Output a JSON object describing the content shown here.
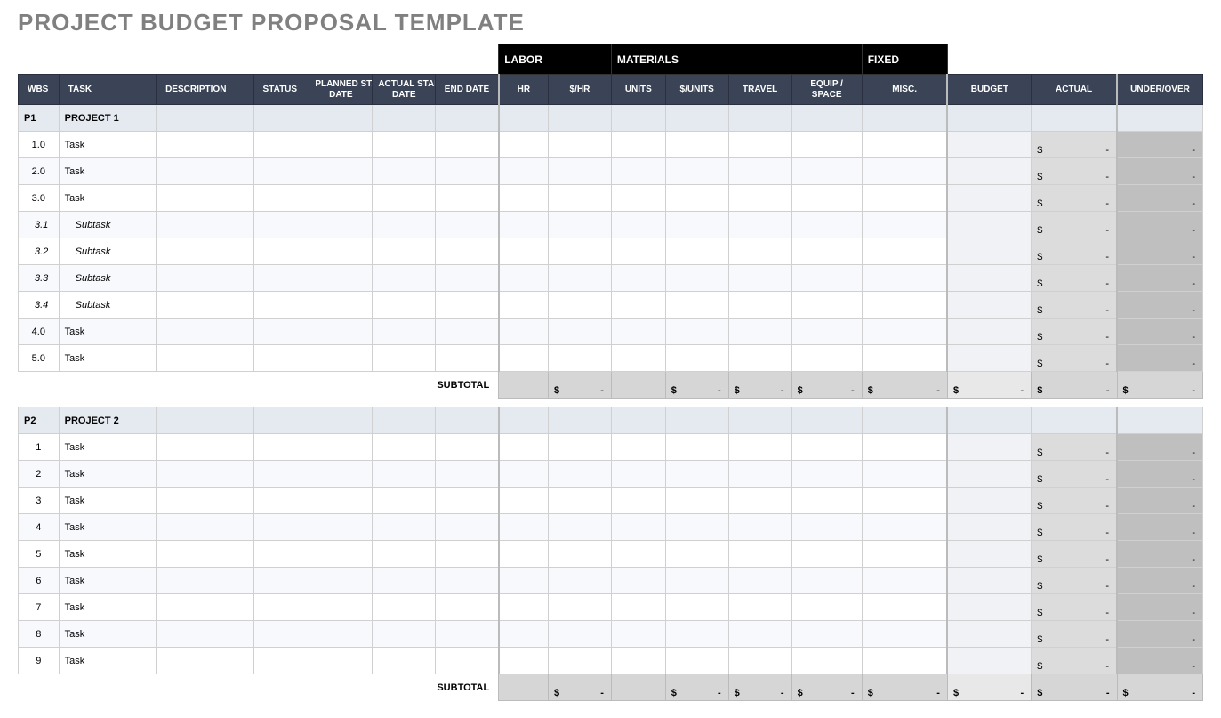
{
  "title": "PROJECT BUDGET PROPOSAL TEMPLATE",
  "groupHeaders": {
    "labor": "LABOR",
    "materials": "MATERIALS",
    "fixed": "FIXED"
  },
  "columns": {
    "wbs": "WBS",
    "task": "TASK",
    "description": "DESCRIPTION",
    "status": "STATUS",
    "plannedStart": "PLANNED START DATE",
    "actualStart": "ACTUAL START DATE",
    "endDate": "END DATE",
    "hr": "HR",
    "dollarsHr": "$/HR",
    "units": "UNITS",
    "dollarsUnits": "$/UNITS",
    "travel": "TRAVEL",
    "equip": "EQUIP / SPACE",
    "misc": "MISC.",
    "budget": "BUDGET",
    "actual": "ACTUAL",
    "underOver": "UNDER/OVER"
  },
  "subtotalLabel": "SUBTOTAL",
  "moneySymbol": "$",
  "moneyDash": "-",
  "projects": [
    {
      "id": "P1",
      "name": "PROJECT 1",
      "rows": [
        {
          "wbs": "1.0",
          "task": "Task",
          "indent": false
        },
        {
          "wbs": "2.0",
          "task": "Task",
          "indent": false
        },
        {
          "wbs": "3.0",
          "task": "Task",
          "indent": false
        },
        {
          "wbs": "3.1",
          "task": "Subtask",
          "indent": true
        },
        {
          "wbs": "3.2",
          "task": "Subtask",
          "indent": true
        },
        {
          "wbs": "3.3",
          "task": "Subtask",
          "indent": true
        },
        {
          "wbs": "3.4",
          "task": "Subtask",
          "indent": true
        },
        {
          "wbs": "4.0",
          "task": "Task",
          "indent": false
        },
        {
          "wbs": "5.0",
          "task": "Task",
          "indent": false
        }
      ]
    },
    {
      "id": "P2",
      "name": "PROJECT 2",
      "rows": [
        {
          "wbs": "1",
          "task": "Task",
          "indent": false
        },
        {
          "wbs": "2",
          "task": "Task",
          "indent": false
        },
        {
          "wbs": "3",
          "task": "Task",
          "indent": false
        },
        {
          "wbs": "4",
          "task": "Task",
          "indent": false
        },
        {
          "wbs": "5",
          "task": "Task",
          "indent": false
        },
        {
          "wbs": "6",
          "task": "Task",
          "indent": false
        },
        {
          "wbs": "7",
          "task": "Task",
          "indent": false
        },
        {
          "wbs": "8",
          "task": "Task",
          "indent": false
        },
        {
          "wbs": "9",
          "task": "Task",
          "indent": false
        }
      ]
    }
  ],
  "colors": {
    "titleText": "#808080",
    "groupHeaderBg": "#000000",
    "colHeaderBg": "#3a4456",
    "projectRowBg": "#e5e9f0",
    "altRowBg": "#f7f9fc",
    "actualCellBg": "#dcdcdc",
    "underOverBg": "#bfbfbf",
    "subtotalCellBg": "#d6d6d6",
    "border": "#d0d0d0"
  },
  "columnWidths": {
    "wbs": 45,
    "task": 108,
    "description": 108,
    "status": 62,
    "plannedStart": 70,
    "actualStart": 70,
    "endDate": 70,
    "hr": 55,
    "dollarsHr": 70,
    "units": 60,
    "dollarsUnits": 70,
    "travel": 70,
    "equip": 78,
    "misc": 95,
    "budget": 93,
    "actual": 95,
    "underOver": 95
  }
}
